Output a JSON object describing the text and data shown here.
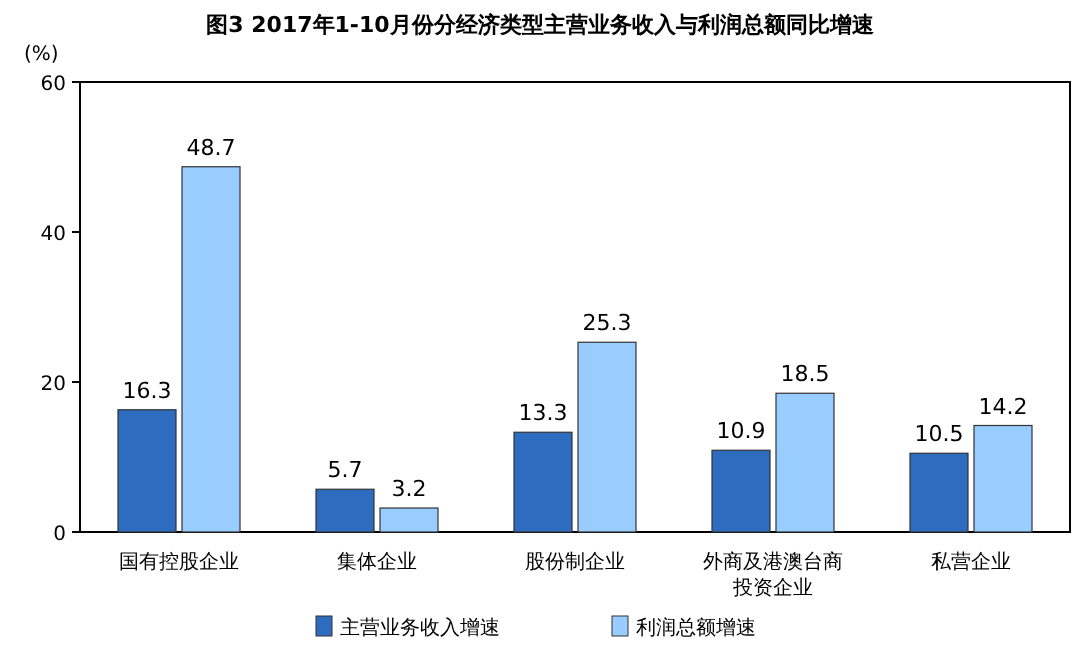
{
  "chart_data": {
    "type": "bar",
    "title": "图3 2017年1-10月份分经济类型主营业务收入与利润总额同比增速",
    "ylabel": "(%)",
    "categories": [
      "国有控股企业",
      "集体企业",
      "股份制企业",
      "外商及港澳台商投资企业",
      "私营企业"
    ],
    "series": [
      {
        "name": "主营业务收入增速",
        "color": "#2e6cbf",
        "values": [
          16.3,
          5.7,
          13.3,
          10.9,
          10.5
        ]
      },
      {
        "name": "利润总额增速",
        "color": "#99ccff",
        "values": [
          48.7,
          3.2,
          25.3,
          18.5,
          14.2
        ]
      }
    ],
    "ylim": [
      0,
      60
    ],
    "yticks": [
      0,
      20,
      40,
      60
    ],
    "data_labels": true,
    "legend": "bottom",
    "grid": false
  }
}
